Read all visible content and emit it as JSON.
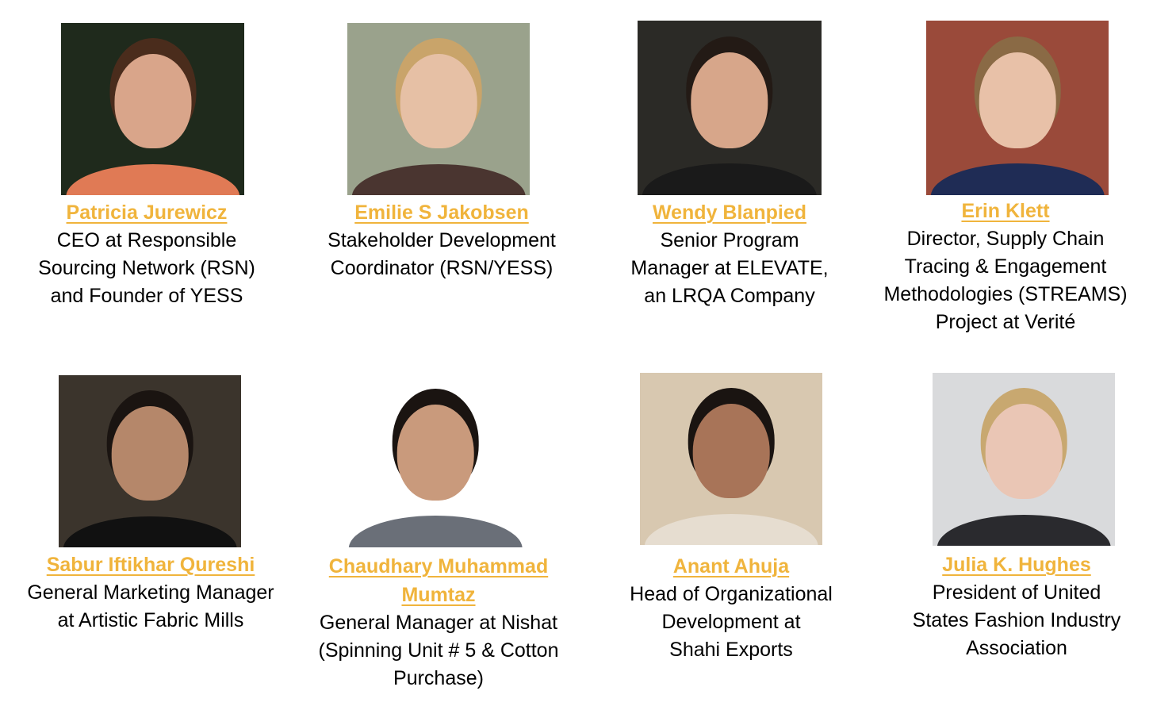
{
  "people": [
    {
      "name": "Patricia Jurewicz",
      "title": "CEO at Responsible\nSourcing Network (RSN)\nand Founder of YESS",
      "photo_bg": "#1f2a1c",
      "skin": "#d9a58a",
      "hair": "#4a2c1c",
      "cloth": "#e07a55"
    },
    {
      "name": "Emilie S Jakobsen",
      "title": "Stakeholder Development\nCoordinator (RSN/YESS)",
      "photo_bg": "#9aa28c",
      "skin": "#e6c0a5",
      "hair": "#c9a46a",
      "cloth": "#4a3530"
    },
    {
      "name": "Wendy Blanpied",
      "title": "Senior Program\nManager at ELEVATE,\nan LRQA Company",
      "photo_bg": "#2b2a26",
      "skin": "#d7a68a",
      "hair": "#231a15",
      "cloth": "#1a1a1a"
    },
    {
      "name": "Erin Klett",
      "title": "Director, Supply Chain\nTracing & Engagement\nMethodologies (STREAMS)\nProject at Verité",
      "photo_bg": "#9a4a3a",
      "skin": "#e8c1a8",
      "hair": "#8a6a45",
      "cloth": "#1f2c55"
    },
    {
      "name": "Sabur Iftikhar Qureshi",
      "title": "General Marketing Manager\nat Artistic Fabric Mills",
      "photo_bg": "#3b342c",
      "skin": "#b5876a",
      "hair": "#1a1411",
      "cloth": "#111111"
    },
    {
      "name": "Chaudhary Muhammad\nMumtaz",
      "title": "General Manager at Nishat\n(Spinning Unit # 5 & Cotton\nPurchase)",
      "photo_bg": "#ffffff",
      "skin": "#c99a7c",
      "hair": "#1a1411",
      "cloth": "#6a6f78"
    },
    {
      "name": "Anant Ahuja",
      "title": "Head of Organizational\nDevelopment at\nShahi Exports",
      "photo_bg": "#d8c8b0",
      "skin": "#a87458",
      "hair": "#1a1411",
      "cloth": "#e6ddd0"
    },
    {
      "name": "Julia K. Hughes",
      "title": "President of United\nStates Fashion Industry\nAssociation",
      "photo_bg": "#d9dadc",
      "skin": "#eac6b5",
      "hair": "#c8a870",
      "cloth": "#2a2a2e"
    }
  ],
  "link_color": "#f0b43c"
}
